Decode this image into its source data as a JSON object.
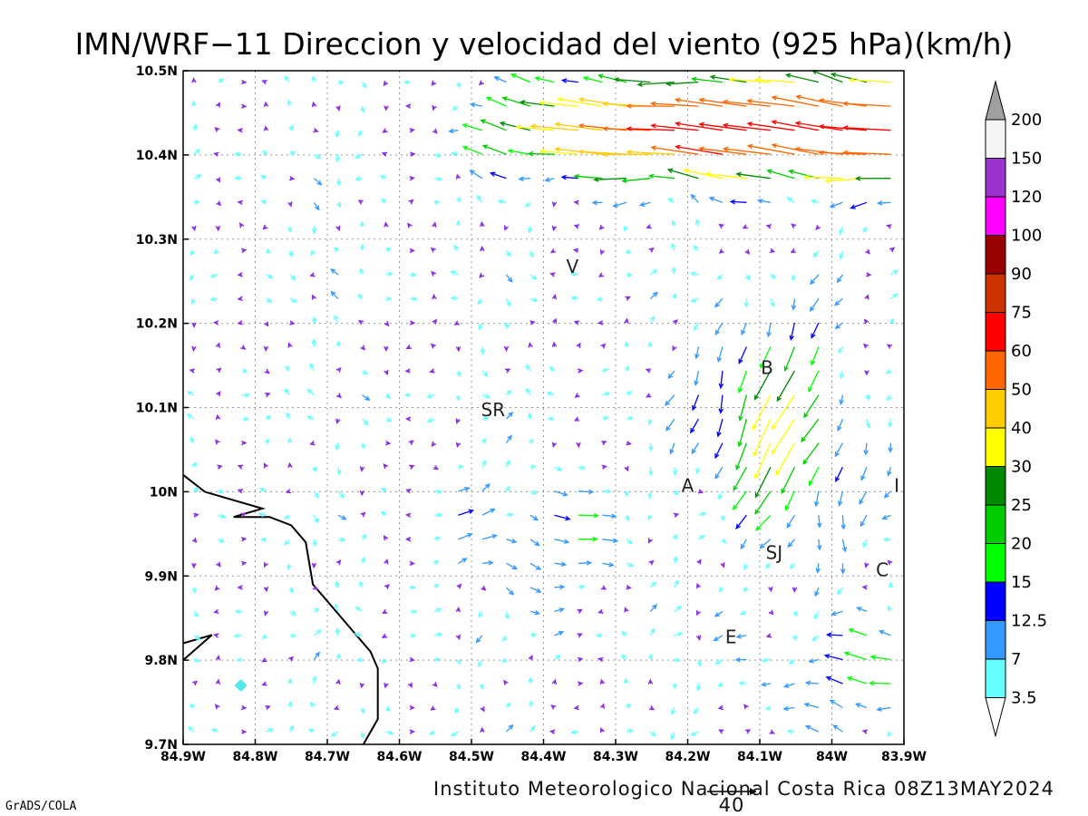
{
  "title": "IMN/WRF−11 Direccion y velocidad del viento (925 hPa)(km/h)",
  "footer": "Instituto Meteorologico Nacional Costa Rica 08Z13MAY2024",
  "credit": "GrADS/COLA",
  "reference_vector": {
    "label": "40",
    "speed": 40
  },
  "map": {
    "lon_range": [
      -84.9,
      -83.9
    ],
    "lat_range": [
      9.7,
      10.5
    ],
    "x_ticks": [
      "84.9W",
      "84.8W",
      "84.7W",
      "84.6W",
      "84.5W",
      "84.4W",
      "84.3W",
      "84.2W",
      "84.1W",
      "84W",
      "83.9W"
    ],
    "y_ticks": [
      "9.7N",
      "9.8N",
      "9.9N",
      "10N",
      "10.1N",
      "10.2N",
      "10.3N",
      "10.4N",
      "10.5N"
    ],
    "grid": true
  },
  "places": [
    {
      "label": "V",
      "lon": -84.36,
      "lat": 10.26
    },
    {
      "label": "B",
      "lon": -84.09,
      "lat": 10.14
    },
    {
      "label": "SR",
      "lon": -84.47,
      "lat": 10.09
    },
    {
      "label": "A",
      "lon": -84.2,
      "lat": 10.0
    },
    {
      "label": "I",
      "lon": -83.91,
      "lat": 10.0
    },
    {
      "label": "SJ",
      "lon": -84.08,
      "lat": 9.92
    },
    {
      "label": "C",
      "lon": -83.93,
      "lat": 9.9
    },
    {
      "label": "E",
      "lon": -84.14,
      "lat": 9.82
    }
  ],
  "colorbar": {
    "labels": [
      "3.5",
      "7",
      "12.5",
      "15",
      "20",
      "25",
      "30",
      "40",
      "50",
      "60",
      "75",
      "90",
      "100",
      "120",
      "150",
      "200"
    ],
    "colors": [
      "#66ffff",
      "#3399ff",
      "#0000ff",
      "#00ff00",
      "#00cc00",
      "#008800",
      "#ffff00",
      "#ffcc00",
      "#ff6600",
      "#ff0000",
      "#cc3300",
      "#990000",
      "#ff00ff",
      "#9933cc",
      "#f5f5f5",
      "#a0a0a0"
    ]
  },
  "coastline_lonlat": [
    [
      [
        -84.9,
        10.02
      ],
      [
        -84.87,
        10.0
      ],
      [
        -84.83,
        9.99
      ],
      [
        -84.79,
        9.98
      ],
      [
        -84.83,
        9.97
      ],
      [
        -84.78,
        9.97
      ],
      [
        -84.75,
        9.96
      ],
      [
        -84.73,
        9.94
      ],
      [
        -84.72,
        9.89
      ],
      [
        -84.69,
        9.86
      ],
      [
        -84.67,
        9.84
      ],
      [
        -84.64,
        9.81
      ],
      [
        -84.63,
        9.79
      ],
      [
        -84.63,
        9.77
      ],
      [
        -84.63,
        9.73
      ],
      [
        -84.65,
        9.7
      ]
    ],
    [
      [
        -84.9,
        9.82
      ],
      [
        -84.86,
        9.83
      ],
      [
        -84.9,
        9.8
      ]
    ]
  ]
}
